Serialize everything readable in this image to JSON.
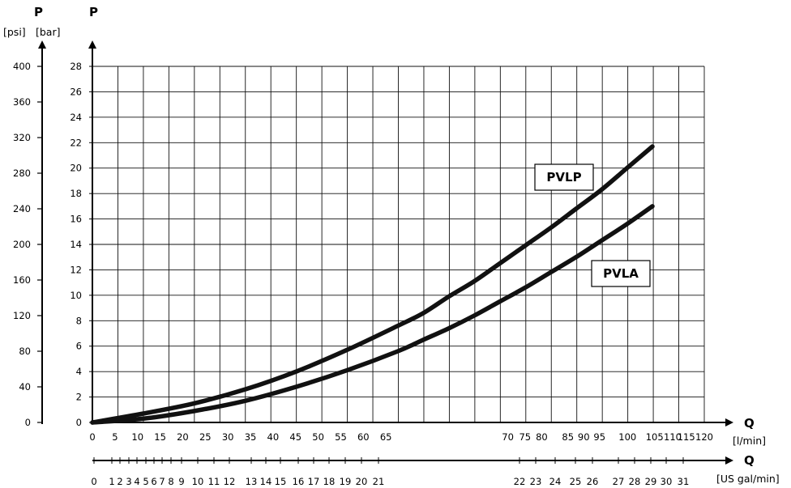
{
  "chart_data": {
    "type": "line",
    "title": "",
    "axes": {
      "y_bar": {
        "label": "P",
        "unit": "[bar]",
        "range": [
          0,
          28
        ],
        "ticks": [
          "0",
          "2",
          "4",
          "6",
          "8",
          "10",
          "12",
          "14",
          "16",
          "18",
          "20",
          "22",
          "24",
          "26",
          "28"
        ]
      },
      "y_psi": {
        "label": "P",
        "unit": "[psi]",
        "range": [
          0,
          400
        ],
        "ticks": [
          "0",
          "40",
          "80",
          "120",
          "160",
          "200",
          "240",
          "280",
          "320",
          "360",
          "400"
        ]
      },
      "x_lmin": {
        "label": "Q",
        "unit": "[l/min]",
        "range": [
          0,
          120
        ],
        "ticks": [
          "0",
          "5",
          "10",
          "15",
          "20",
          "25",
          "30",
          "35",
          "40",
          "45",
          "50",
          "55",
          "60",
          "65",
          "70",
          "75",
          "80",
          "85",
          "90",
          "95",
          "100",
          "105",
          "110",
          "115",
          "120"
        ]
      },
      "x_usgal": {
        "label": "Q",
        "unit": "[US gal/min]",
        "ticks": [
          "0",
          "1",
          "2",
          "3",
          "4",
          "5",
          "6",
          "7",
          "8",
          "9",
          "10",
          "11",
          "12",
          "13",
          "14",
          "15",
          "16",
          "17",
          "18",
          "19",
          "20",
          "21",
          "22",
          "23",
          "24",
          "25",
          "26",
          "27",
          "28",
          "29",
          "30",
          "31"
        ]
      }
    },
    "grid": true,
    "series": [
      {
        "name": "PVLP",
        "x": [
          0,
          10,
          20,
          30,
          40,
          50,
          60,
          65,
          70,
          75,
          80,
          85,
          90,
          95,
          100,
          105,
          110
        ],
        "y": [
          0,
          0.7,
          1.5,
          2.6,
          4.0,
          5.7,
          7.6,
          8.6,
          9.9,
          11.1,
          12.5,
          13.9,
          15.3,
          16.8,
          18.3,
          20.0,
          21.7
        ]
      },
      {
        "name": "PVLA",
        "x": [
          0,
          10,
          20,
          30,
          40,
          50,
          60,
          65,
          70,
          75,
          80,
          85,
          90,
          95,
          100,
          105,
          110
        ],
        "y": [
          0,
          0.3,
          0.9,
          1.7,
          2.8,
          4.1,
          5.6,
          6.5,
          7.4,
          8.4,
          9.5,
          10.6,
          11.8,
          13.0,
          14.3,
          15.6,
          17.0
        ]
      }
    ]
  }
}
